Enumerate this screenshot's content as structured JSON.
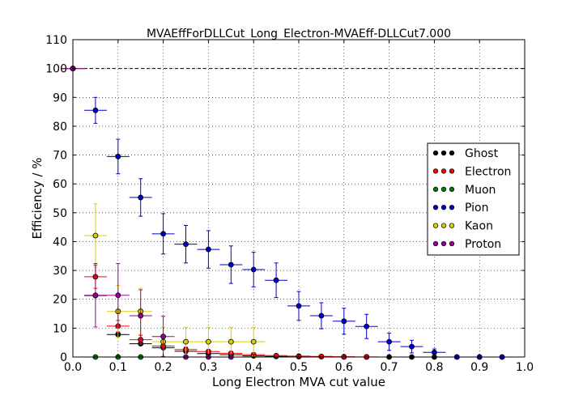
{
  "chart_data": {
    "type": "scatter",
    "title": "MVAEffForDLLCut_Long_Electron-MVAEff-DLLCut7.000",
    "xlabel": "Long Electron MVA cut value",
    "ylabel": "Efficiency / %",
    "xlim": [
      0.0,
      1.0
    ],
    "ylim": [
      0,
      110
    ],
    "xticks": [
      "0.0",
      "0.1",
      "0.2",
      "0.3",
      "0.4",
      "0.5",
      "0.6",
      "0.7",
      "0.8",
      "0.9",
      "1.0"
    ],
    "yticks": [
      "0",
      "10",
      "20",
      "30",
      "40",
      "50",
      "60",
      "70",
      "80",
      "90",
      "100",
      "110"
    ],
    "grid": true,
    "legend_position": "right",
    "reference_line": 100,
    "series": [
      {
        "name": "Ghost",
        "color": "#000000",
        "points": [
          [
            0.0,
            100,
            0.025,
            0
          ],
          [
            0.05,
            21.3,
            0.025,
            0
          ],
          [
            0.1,
            7.8,
            0.025,
            0
          ],
          [
            0.15,
            4.6,
            0.025,
            0
          ],
          [
            0.2,
            3.2,
            0.025,
            0
          ],
          [
            0.25,
            2.0,
            0.025,
            0
          ],
          [
            0.3,
            1.2,
            0.025,
            0
          ],
          [
            0.35,
            0.8,
            0.025,
            0
          ],
          [
            0.4,
            0.4,
            0.025,
            0
          ],
          [
            0.45,
            0.2,
            0.025,
            0
          ],
          [
            0.5,
            0.1,
            0.025,
            0
          ],
          [
            0.55,
            0.1,
            0.025,
            0
          ],
          [
            0.6,
            0.0,
            0.025,
            0
          ],
          [
            0.65,
            0.0,
            0.025,
            0
          ],
          [
            0.7,
            0.0,
            0.025,
            0
          ],
          [
            0.75,
            0.0,
            0.025,
            0
          ],
          [
            0.8,
            0.0,
            0.025,
            0
          ],
          [
            0.85,
            0.0,
            0.025,
            0
          ],
          [
            0.9,
            0.0,
            0.025,
            0
          ],
          [
            0.95,
            0.0,
            0.025,
            0
          ]
        ]
      },
      {
        "name": "Electron",
        "color": "#ff0000",
        "points": [
          [
            0.0,
            100,
            0.025,
            0
          ],
          [
            0.05,
            27.8,
            0.025,
            4
          ],
          [
            0.1,
            10.7,
            0.025,
            2
          ],
          [
            0.15,
            6.0,
            0.025,
            1.5
          ],
          [
            0.2,
            3.8,
            0.025,
            1
          ],
          [
            0.25,
            2.6,
            0.025,
            0.8
          ],
          [
            0.3,
            1.9,
            0.025,
            0.6
          ],
          [
            0.35,
            1.3,
            0.025,
            0.5
          ],
          [
            0.4,
            0.8,
            0.025,
            0.4
          ],
          [
            0.45,
            0.5,
            0.025,
            0.3
          ],
          [
            0.5,
            0.3,
            0.025,
            0.2
          ],
          [
            0.55,
            0.2,
            0.025,
            0.1
          ],
          [
            0.6,
            0.1,
            0.025,
            0.1
          ],
          [
            0.65,
            0.05,
            0.025,
            0
          ]
        ]
      },
      {
        "name": "Muon",
        "color": "#008000",
        "points": [
          [
            0.0,
            100,
            0.025,
            0
          ],
          [
            0.05,
            0.0,
            0.025,
            0
          ],
          [
            0.1,
            0.0,
            0.025,
            0
          ],
          [
            0.15,
            0.0,
            0.025,
            0
          ]
        ]
      },
      {
        "name": "Pion",
        "color": "#0000cc",
        "points": [
          [
            0.0,
            100,
            0.025,
            0
          ],
          [
            0.05,
            85.5,
            0.025,
            4.5
          ],
          [
            0.1,
            69.5,
            0.025,
            6
          ],
          [
            0.15,
            55.3,
            0.025,
            6.5
          ],
          [
            0.2,
            42.7,
            0.025,
            7
          ],
          [
            0.25,
            39.1,
            0.025,
            6.5
          ],
          [
            0.3,
            37.3,
            0.025,
            6.5
          ],
          [
            0.35,
            32.0,
            0.025,
            6.5
          ],
          [
            0.4,
            30.3,
            0.025,
            6
          ],
          [
            0.45,
            26.6,
            0.025,
            6
          ],
          [
            0.5,
            17.7,
            0.025,
            5
          ],
          [
            0.55,
            14.3,
            0.025,
            4.5
          ],
          [
            0.6,
            12.4,
            0.025,
            4.5
          ],
          [
            0.65,
            10.6,
            0.025,
            4.2
          ],
          [
            0.7,
            5.3,
            0.025,
            3
          ],
          [
            0.75,
            3.6,
            0.025,
            2.2
          ],
          [
            0.8,
            1.6,
            0.025,
            1.2
          ],
          [
            0.85,
            0.0,
            0.025,
            0
          ],
          [
            0.9,
            0.0,
            0.025,
            0
          ],
          [
            0.95,
            0.0,
            0.025,
            0
          ]
        ]
      },
      {
        "name": "Kaon",
        "color": "#ddcc00",
        "points": [
          [
            0.0,
            100,
            0.025,
            0
          ],
          [
            0.05,
            42.1,
            0.025,
            11
          ],
          [
            0.1,
            15.8,
            0.025,
            9
          ],
          [
            0.15,
            15.8,
            0.025,
            8
          ],
          [
            0.2,
            5.3,
            0.025,
            5
          ],
          [
            0.25,
            5.3,
            0.025,
            5
          ],
          [
            0.3,
            5.3,
            0.025,
            5
          ],
          [
            0.35,
            5.3,
            0.025,
            5
          ],
          [
            0.4,
            5.3,
            0.025,
            5
          ]
        ]
      },
      {
        "name": "Proton",
        "color": "#990099",
        "points": [
          [
            0.0,
            100,
            0.025,
            0
          ],
          [
            0.05,
            21.4,
            0.025,
            11
          ],
          [
            0.1,
            21.4,
            0.025,
            11
          ],
          [
            0.15,
            14.3,
            0.025,
            9
          ],
          [
            0.2,
            7.1,
            0.025,
            7
          ],
          [
            0.25,
            0.0,
            0.025,
            0
          ],
          [
            0.3,
            0.0,
            0.025,
            0
          ],
          [
            0.35,
            0.0,
            0.025,
            0
          ]
        ]
      }
    ]
  }
}
